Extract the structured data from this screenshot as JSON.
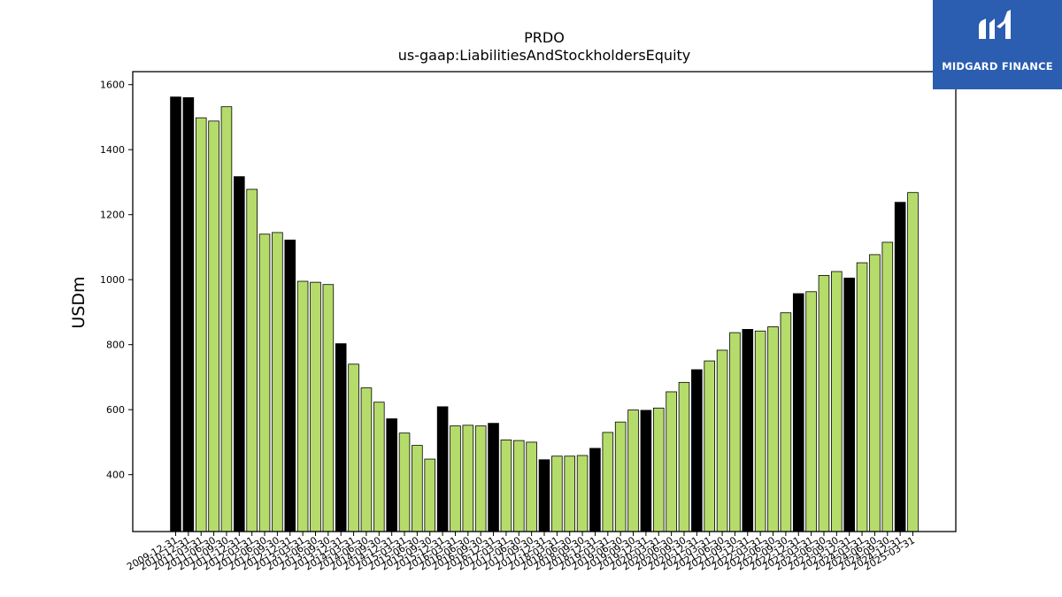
{
  "brand": {
    "name": "MIDGARD FINANCE",
    "background": "#2b5db0"
  },
  "colors": {
    "annual_bar": "#000000",
    "quarter_bar": "#b5dc6b",
    "bar_edge": "#000000"
  },
  "chart_data": {
    "type": "bar",
    "title": "PRDO",
    "subtitle": "us-gaap:LiabilitiesAndStockholdersEquity",
    "xlabel": "",
    "ylabel": "USDm",
    "ylim": [
      225,
      1640
    ],
    "yticks": [
      400,
      600,
      800,
      1000,
      1200,
      1400,
      1600
    ],
    "grid": false,
    "categories": [
      "2009-12-31",
      "2010-12-31",
      "2011-03-31",
      "2011-06-30",
      "2011-09-30",
      "2011-12-31",
      "2012-03-31",
      "2012-06-30",
      "2012-09-30",
      "2012-12-31",
      "2013-03-31",
      "2013-06-30",
      "2013-09-30",
      "2013-12-31",
      "2014-03-31",
      "2014-06-30",
      "2014-09-30",
      "2014-12-31",
      "2015-03-31",
      "2015-06-30",
      "2015-09-30",
      "2015-12-31",
      "2016-03-31",
      "2016-06-30",
      "2016-09-30",
      "2016-12-31",
      "2017-03-31",
      "2017-06-30",
      "2017-09-30",
      "2017-12-31",
      "2018-03-31",
      "2018-06-30",
      "2018-09-30",
      "2018-12-31",
      "2019-03-31",
      "2019-06-30",
      "2019-09-30",
      "2019-12-31",
      "2020-03-31",
      "2020-06-30",
      "2020-09-30",
      "2020-12-31",
      "2021-03-31",
      "2021-06-30",
      "2021-09-30",
      "2021-12-31",
      "2022-03-31",
      "2022-06-30",
      "2022-09-30",
      "2022-12-31",
      "2023-03-31",
      "2023-06-30",
      "2023-09-30",
      "2023-12-31",
      "2024-03-31",
      "2024-06-30",
      "2024-09-30",
      "2024-12-31",
      "2025-03-31"
    ],
    "values": [
      1562,
      1560,
      1498,
      1488,
      1532,
      1317,
      1278,
      1140,
      1145,
      1122,
      995,
      992,
      985,
      803,
      740,
      667,
      623,
      572,
      528,
      490,
      448,
      609,
      550,
      552,
      550,
      558,
      507,
      505,
      500,
      446,
      457,
      457,
      459,
      481,
      530,
      562,
      599,
      598,
      605,
      655,
      684,
      723,
      750,
      783,
      837,
      847,
      842,
      855,
      898,
      957,
      963,
      1013,
      1025,
      1005,
      1052,
      1077,
      1115,
      1238,
      1268
    ],
    "annual_flags": [
      true,
      true,
      false,
      false,
      false,
      true,
      false,
      false,
      false,
      true,
      false,
      false,
      false,
      true,
      false,
      false,
      false,
      true,
      false,
      false,
      false,
      true,
      false,
      false,
      false,
      true,
      false,
      false,
      false,
      true,
      false,
      false,
      false,
      true,
      false,
      false,
      false,
      true,
      false,
      false,
      false,
      true,
      false,
      false,
      false,
      true,
      false,
      false,
      false,
      true,
      false,
      false,
      false,
      true,
      false,
      false,
      false,
      true,
      false
    ]
  }
}
